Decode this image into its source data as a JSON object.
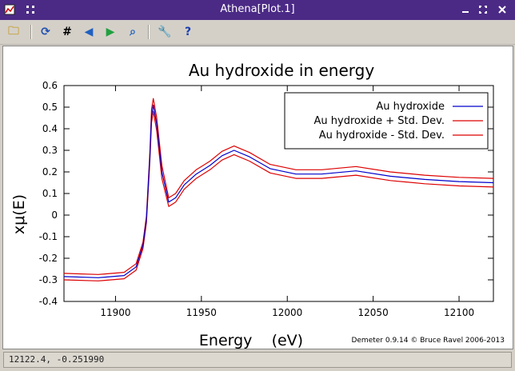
{
  "window": {
    "title": "Athena[Plot.1]",
    "left_icon": "window-menu-icon",
    "controls": [
      "minimize-icon",
      "maximize-icon",
      "close-icon"
    ]
  },
  "toolbar": {
    "tools": [
      {
        "name": "save-image-tool",
        "icon": "folder-image-icon",
        "glyph": "🗀",
        "color": "#c8a040"
      },
      {
        "name": "refresh-tool",
        "icon": "refresh-icon",
        "glyph": "⟳",
        "color": "#2050b0"
      },
      {
        "name": "grid-tool",
        "icon": "grid-icon",
        "glyph": "#",
        "color": "#000000"
      },
      {
        "name": "zoom-back-tool",
        "icon": "zoom-back-icon",
        "glyph": "◀",
        "color": "#2060c0"
      },
      {
        "name": "zoom-forward-tool",
        "icon": "zoom-forward-icon",
        "glyph": "▶",
        "color": "#20a040"
      },
      {
        "name": "zoom-tool",
        "icon": "zoom-icon",
        "glyph": "⌕",
        "color": "#2060c0"
      },
      {
        "name": "settings-tool",
        "icon": "wrench-icon",
        "glyph": "🔧",
        "color": "#c08020"
      },
      {
        "name": "help-tool",
        "icon": "help-icon",
        "glyph": "?",
        "color": "#1a3fb0"
      }
    ]
  },
  "chart_data": {
    "type": "line",
    "title": "Au hydroxide in energy",
    "xlabel": "Energy    (eV)",
    "ylabel": "xμ(E)",
    "xlim": [
      11870,
      12120
    ],
    "ylim": [
      -0.4,
      0.6
    ],
    "xticks": [
      11900,
      11950,
      12000,
      12050,
      12100
    ],
    "yticks": [
      -0.4,
      -0.3,
      -0.2,
      -0.1,
      0,
      0.1,
      0.2,
      0.3,
      0.4,
      0.5,
      0.6
    ],
    "legend_position": "top-right",
    "series": [
      {
        "name": "Au hydroxide",
        "color": "#0000cc",
        "x": [
          11870,
          11890,
          11905,
          11912,
          11916,
          11918,
          11920,
          11921,
          11922,
          11924,
          11927,
          11931,
          11935,
          11940,
          11947,
          11955,
          11962,
          11969,
          11978,
          11990,
          12005,
          12020,
          12040,
          12060,
          12080,
          12100,
          12120
        ],
        "y": [
          -0.285,
          -0.29,
          -0.28,
          -0.24,
          -0.14,
          -0.02,
          0.27,
          0.46,
          0.51,
          0.42,
          0.2,
          0.06,
          0.08,
          0.14,
          0.19,
          0.23,
          0.275,
          0.3,
          0.27,
          0.215,
          0.19,
          0.19,
          0.205,
          0.18,
          0.165,
          0.155,
          0.15
        ]
      },
      {
        "name": "Au hydroxide + Std. Dev.",
        "color": "#dd0000",
        "x": [
          11870,
          11890,
          11905,
          11912,
          11916,
          11918,
          11920,
          11921,
          11922,
          11924,
          11927,
          11931,
          11935,
          11940,
          11947,
          11955,
          11962,
          11969,
          11978,
          11990,
          12005,
          12020,
          12040,
          12060,
          12080,
          12100,
          12120
        ],
        "y": [
          -0.27,
          -0.275,
          -0.265,
          -0.225,
          -0.125,
          -0.005,
          0.29,
          0.49,
          0.54,
          0.45,
          0.23,
          0.08,
          0.1,
          0.16,
          0.21,
          0.25,
          0.295,
          0.32,
          0.29,
          0.235,
          0.21,
          0.21,
          0.225,
          0.2,
          0.185,
          0.175,
          0.17
        ]
      },
      {
        "name": "Au hydroxide - Std. Dev.",
        "color": "#dd0000",
        "x": [
          11870,
          11890,
          11905,
          11912,
          11916,
          11918,
          11920,
          11921,
          11922,
          11924,
          11927,
          11931,
          11935,
          11940,
          11947,
          11955,
          11962,
          11969,
          11978,
          11990,
          12005,
          12020,
          12040,
          12060,
          12080,
          12100,
          12120
        ],
        "y": [
          -0.3,
          -0.305,
          -0.295,
          -0.255,
          -0.155,
          -0.035,
          0.25,
          0.43,
          0.48,
          0.39,
          0.17,
          0.04,
          0.06,
          0.12,
          0.17,
          0.21,
          0.255,
          0.28,
          0.25,
          0.195,
          0.17,
          0.17,
          0.185,
          0.16,
          0.145,
          0.135,
          0.13
        ]
      }
    ],
    "annotation": "Demeter 0.9.14 © Bruce Ravel 2006-2013"
  },
  "status": {
    "text": "12122.4, -0.251990"
  }
}
